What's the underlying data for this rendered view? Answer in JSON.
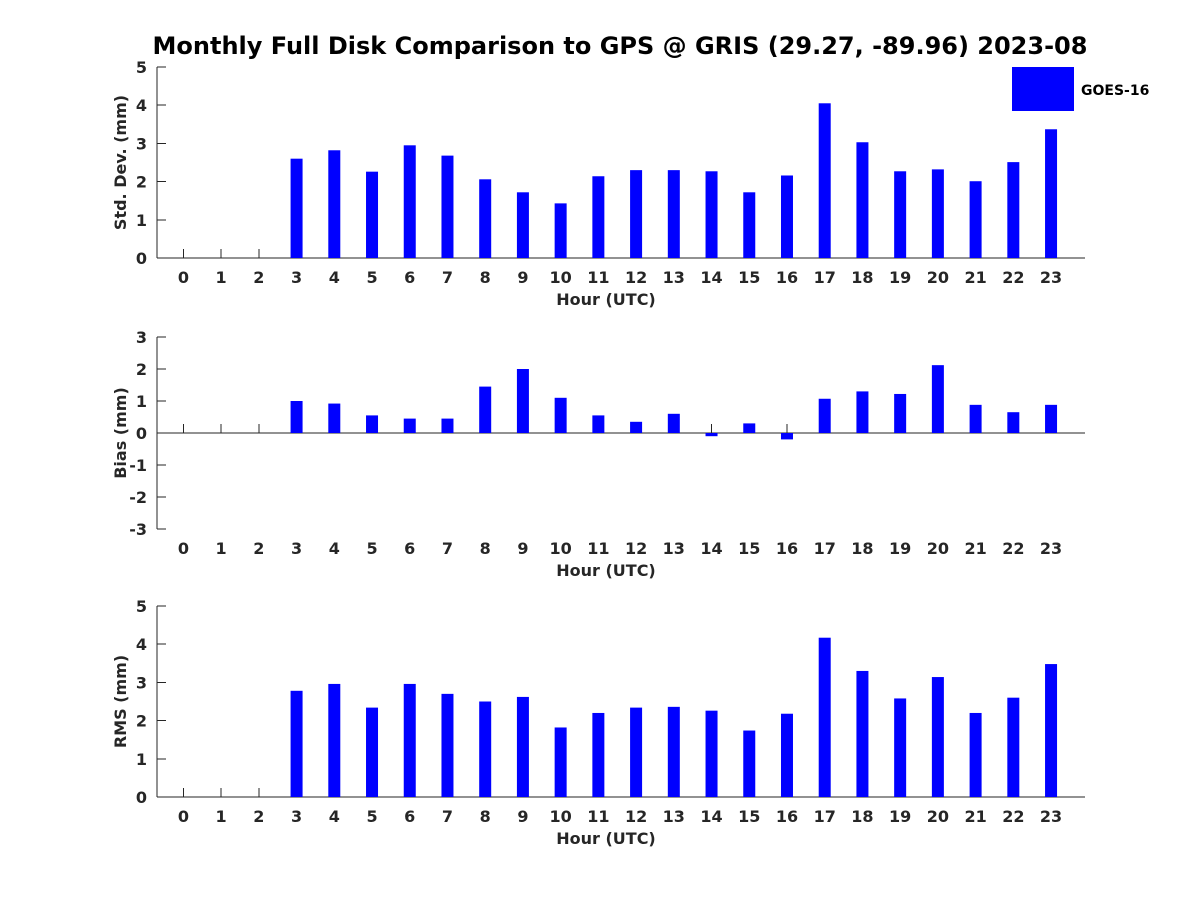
{
  "chart_data": {
    "title": "Monthly Full Disk Comparison to GPS @ GRIS (29.27, -89.96) 2023-08",
    "type": "bar",
    "legend": {
      "label": "GOES-16",
      "color": "#0000ff",
      "placement": "top-right"
    },
    "x": [
      0,
      1,
      2,
      3,
      4,
      5,
      6,
      7,
      8,
      9,
      10,
      11,
      12,
      13,
      14,
      15,
      16,
      17,
      18,
      19,
      20,
      21,
      22,
      23
    ],
    "xlim": [
      -0.7,
      23.9
    ],
    "panels": [
      {
        "id": "std",
        "ylabel": "Std. Dev. (mm)",
        "xlabel": "Hour (UTC)",
        "ylim": [
          0,
          5
        ],
        "yticks": [
          0,
          1,
          2,
          3,
          4,
          5
        ],
        "values": [
          null,
          null,
          null,
          2.6,
          2.82,
          2.26,
          2.95,
          2.68,
          2.06,
          1.72,
          1.43,
          2.14,
          2.3,
          2.3,
          2.27,
          1.72,
          2.16,
          4.05,
          3.03,
          2.27,
          2.32,
          2.01,
          2.51,
          3.37
        ]
      },
      {
        "id": "bias",
        "ylabel": "Bias (mm)",
        "xlabel": "Hour (UTC)",
        "ylim": [
          -3,
          3
        ],
        "yticks": [
          -3,
          -2,
          -1,
          0,
          1,
          2,
          3
        ],
        "values": [
          null,
          null,
          null,
          1.0,
          0.92,
          0.55,
          0.45,
          0.45,
          1.45,
          2.0,
          1.1,
          0.55,
          0.35,
          0.6,
          -0.1,
          0.3,
          -0.2,
          1.07,
          1.3,
          1.22,
          2.12,
          0.88,
          0.65,
          0.88
        ]
      },
      {
        "id": "rms",
        "ylabel": "RMS (mm)",
        "xlabel": "Hour (UTC)",
        "ylim": [
          0,
          5
        ],
        "yticks": [
          0,
          1,
          2,
          3,
          4,
          5
        ],
        "values": [
          null,
          null,
          null,
          2.78,
          2.96,
          2.34,
          2.96,
          2.7,
          2.5,
          2.62,
          1.82,
          2.2,
          2.34,
          2.36,
          2.26,
          1.74,
          2.18,
          4.17,
          3.3,
          2.58,
          3.14,
          2.2,
          2.6,
          3.48
        ]
      }
    ]
  }
}
